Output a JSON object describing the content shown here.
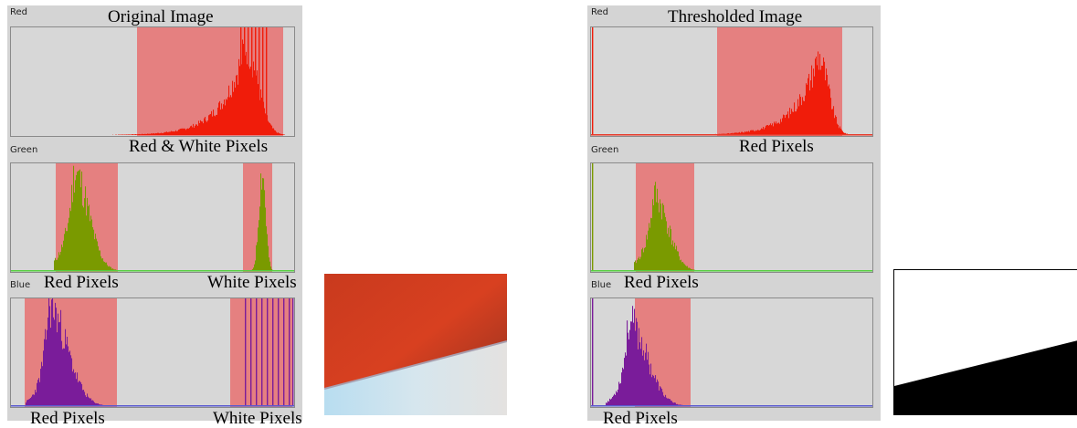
{
  "left": {
    "title": "Original Image",
    "channels": {
      "red": "Red",
      "green": "Green",
      "blue": "Blue"
    },
    "captions": {
      "red_hist": "Red & White Pixels",
      "green_left": "Red Pixels",
      "green_right": "White Pixels",
      "blue_left": "Red Pixels",
      "blue_right": "White Pixels"
    }
  },
  "right": {
    "title": "Thresholded Image",
    "channels": {
      "red": "Red",
      "green": "Green",
      "blue": "Blue"
    },
    "captions": {
      "red_hist": "Red Pixels",
      "green_left": "Red Pixels",
      "blue_left": "Red Pixels"
    }
  },
  "colors": {
    "red_hist": "#f01c0a",
    "green_hist": "#7a9a00",
    "blue_hist": "#7a1c9a",
    "threshold_band": "#e58080",
    "panel_bg": "#d4d4d4"
  }
}
